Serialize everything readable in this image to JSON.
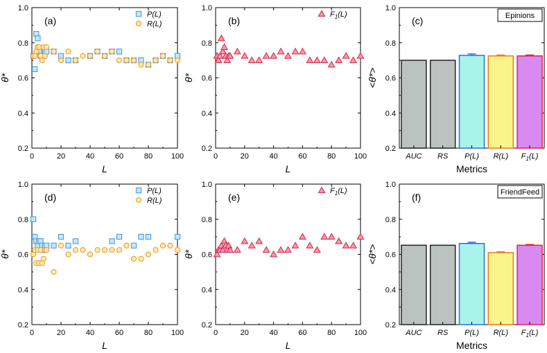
{
  "colors": {
    "P": "#4a9fdb",
    "P_fill": "#c8e6f8",
    "R": "#f0a020",
    "R_fill": "#fde8b8",
    "F": "#d8304f",
    "F_fill": "#f49ab2",
    "bar_auc": "#bcc2c0",
    "bar_rs": "#bcc2c0",
    "bar_p": "#a8f4ea",
    "bar_r": "#f9f58a",
    "bar_f": "#d98af0",
    "edge_auc": "#222222",
    "edge_rs": "#222222",
    "edge_p": "#2b6fd6",
    "edge_r": "#f07818",
    "edge_f": "#e0204a"
  },
  "chart_data": [
    {
      "id": "a",
      "type": "scatter",
      "label": "(a)",
      "xlabel": "L",
      "ylabel": "θ*",
      "xlim": [
        0,
        100
      ],
      "ylim": [
        0.2,
        1.0
      ],
      "xticks": [
        "0",
        "20",
        "40",
        "60",
        "80",
        "100"
      ],
      "yticks": [
        "0.2",
        "0.4",
        "0.6",
        "0.8",
        "1.0"
      ],
      "legend": [
        {
          "label": "P(L)",
          "series": "P",
          "marker": "square"
        },
        {
          "label": "R(L)",
          "series": "R",
          "marker": "circle"
        }
      ],
      "series": [
        {
          "name": "P(L)",
          "key": "P",
          "marker": "square",
          "x": [
            1,
            2,
            3,
            4,
            5,
            6,
            7,
            8,
            9,
            10,
            15,
            20,
            25,
            30,
            40,
            45,
            50,
            55,
            60,
            65,
            70,
            75,
            80,
            85,
            90,
            95,
            100
          ],
          "y": [
            0.725,
            0.65,
            0.85,
            0.825,
            0.75,
            0.725,
            0.725,
            0.725,
            0.75,
            0.75,
            0.75,
            0.725,
            0.7,
            0.7,
            0.725,
            0.75,
            0.725,
            0.75,
            0.75,
            0.7,
            0.7,
            0.7,
            0.675,
            0.7,
            0.725,
            0.7,
            0.725
          ]
        },
        {
          "name": "R(L)",
          "key": "R",
          "marker": "circle",
          "x": [
            1,
            2,
            3,
            4,
            5,
            6,
            7,
            8,
            9,
            10,
            15,
            20,
            25,
            30,
            35,
            40,
            45,
            50,
            55,
            60,
            65,
            70,
            75,
            80,
            85,
            90,
            95,
            100
          ],
          "y": [
            0.725,
            0.725,
            0.75,
            0.775,
            0.775,
            0.725,
            0.7,
            0.775,
            0.725,
            0.775,
            0.75,
            0.7,
            0.75,
            0.7,
            0.725,
            0.725,
            0.75,
            0.725,
            0.75,
            0.7,
            0.7,
            0.7,
            0.675,
            0.675,
            0.7,
            0.725,
            0.7,
            0.7
          ]
        }
      ]
    },
    {
      "id": "b",
      "type": "scatter",
      "label": "(b)",
      "xlabel": "L",
      "ylabel": "θ*",
      "xlim": [
        0,
        100
      ],
      "ylim": [
        0.2,
        1.0
      ],
      "xticks": [
        "0",
        "20",
        "40",
        "60",
        "80",
        "100"
      ],
      "yticks": [
        "0.2",
        "0.4",
        "0.6",
        "0.8",
        "1.0"
      ],
      "legend": [
        {
          "label": "F1(L)",
          "series": "F",
          "marker": "triangle"
        }
      ],
      "series": [
        {
          "name": "F1(L)",
          "key": "F",
          "marker": "triangle",
          "x": [
            1,
            2,
            3,
            4,
            5,
            6,
            7,
            8,
            9,
            10,
            15,
            20,
            25,
            30,
            35,
            40,
            45,
            50,
            55,
            60,
            65,
            70,
            75,
            80,
            85,
            90,
            95,
            100
          ],
          "y": [
            0.725,
            0.7,
            0.725,
            0.825,
            0.75,
            0.775,
            0.725,
            0.7,
            0.725,
            0.725,
            0.75,
            0.725,
            0.7,
            0.7,
            0.725,
            0.725,
            0.75,
            0.725,
            0.75,
            0.75,
            0.7,
            0.7,
            0.7,
            0.675,
            0.7,
            0.725,
            0.7,
            0.725
          ]
        }
      ]
    },
    {
      "id": "c",
      "type": "bar",
      "label": "(c)",
      "dataset": "Epinions",
      "xlabel": "Metrics",
      "ylabel": "<θ*>",
      "ylim": [
        0.2,
        1.0
      ],
      "yticks": [
        "0.2",
        "0.4",
        "0.6",
        "0.8",
        "1.0"
      ],
      "categories": [
        "AUC",
        "RS",
        "P(L)",
        "R(L)",
        "F1(L)"
      ],
      "keys": [
        "auc",
        "rs",
        "p",
        "r",
        "f"
      ],
      "values": [
        0.7,
        0.7,
        0.728,
        0.725,
        0.725
      ],
      "errors": [
        0,
        0,
        0.008,
        0.005,
        0.005
      ]
    },
    {
      "id": "d",
      "type": "scatter",
      "label": "(d)",
      "xlabel": "L",
      "ylabel": "θ*",
      "xlim": [
        0,
        100
      ],
      "ylim": [
        0.2,
        1.0
      ],
      "xticks": [
        "0",
        "20",
        "40",
        "60",
        "80",
        "100"
      ],
      "yticks": [
        "0.2",
        "0.4",
        "0.6",
        "0.8",
        "1.0"
      ],
      "legend": [
        {
          "label": "P(L)",
          "series": "P",
          "marker": "square"
        },
        {
          "label": "R(L)",
          "series": "R",
          "marker": "circle"
        }
      ],
      "series": [
        {
          "name": "P(L)",
          "key": "P",
          "marker": "square",
          "x": [
            1,
            2,
            3,
            4,
            5,
            6,
            7,
            8,
            9,
            10,
            15,
            20,
            25,
            30,
            55,
            60,
            70,
            75,
            80,
            100
          ],
          "y": [
            0.8,
            0.7,
            0.675,
            0.65,
            0.675,
            0.675,
            0.65,
            0.625,
            0.65,
            0.65,
            0.65,
            0.7,
            0.65,
            0.675,
            0.675,
            0.7,
            0.65,
            0.7,
            0.7,
            0.7
          ]
        },
        {
          "name": "R(L)",
          "key": "R",
          "marker": "circle",
          "x": [
            1,
            2,
            3,
            4,
            5,
            6,
            7,
            8,
            9,
            10,
            15,
            20,
            25,
            30,
            35,
            40,
            45,
            50,
            55,
            60,
            65,
            70,
            75,
            80,
            85,
            90,
            95,
            100
          ],
          "y": [
            0.6,
            0.625,
            0.55,
            0.625,
            0.55,
            0.625,
            0.55,
            0.575,
            0.625,
            0.625,
            0.5,
            0.65,
            0.6,
            0.625,
            0.625,
            0.6,
            0.625,
            0.625,
            0.625,
            0.625,
            0.65,
            0.575,
            0.575,
            0.6,
            0.625,
            0.65,
            0.65,
            0.625
          ]
        }
      ]
    },
    {
      "id": "e",
      "type": "scatter",
      "label": "(e)",
      "xlabel": "L",
      "ylabel": "θ*",
      "xlim": [
        0,
        100
      ],
      "ylim": [
        0.2,
        1.0
      ],
      "xticks": [
        "0",
        "20",
        "40",
        "60",
        "80",
        "100"
      ],
      "yticks": [
        "0.2",
        "0.4",
        "0.6",
        "0.8",
        "1.0"
      ],
      "legend": [
        {
          "label": "F1(L)",
          "series": "F",
          "marker": "triangle"
        }
      ],
      "series": [
        {
          "name": "F1(L)",
          "key": "F",
          "marker": "triangle",
          "x": [
            1,
            2,
            3,
            4,
            5,
            6,
            7,
            8,
            9,
            10,
            15,
            20,
            25,
            30,
            35,
            40,
            45,
            50,
            55,
            60,
            65,
            70,
            75,
            80,
            85,
            90,
            95,
            100
          ],
          "y": [
            0.6,
            0.625,
            0.625,
            0.65,
            0.625,
            0.675,
            0.65,
            0.625,
            0.65,
            0.625,
            0.625,
            0.675,
            0.65,
            0.675,
            0.625,
            0.6,
            0.625,
            0.625,
            0.65,
            0.7,
            0.65,
            0.625,
            0.7,
            0.7,
            0.675,
            0.65,
            0.65,
            0.7
          ]
        }
      ]
    },
    {
      "id": "f",
      "type": "bar",
      "label": "(f)",
      "dataset": "FriendFeed",
      "xlabel": "Metrics",
      "ylabel": "<θ*>",
      "ylim": [
        0.2,
        1.0
      ],
      "yticks": [
        "0.2",
        "0.4",
        "0.6",
        "0.8",
        "1.0"
      ],
      "categories": [
        "AUC",
        "RS",
        "P(L)",
        "R(L)",
        "F1(L)"
      ],
      "keys": [
        "auc",
        "rs",
        "p",
        "r",
        "f"
      ],
      "values": [
        0.652,
        0.652,
        0.662,
        0.61,
        0.652
      ],
      "errors": [
        0,
        0,
        0.007,
        0.005,
        0.004
      ]
    }
  ]
}
